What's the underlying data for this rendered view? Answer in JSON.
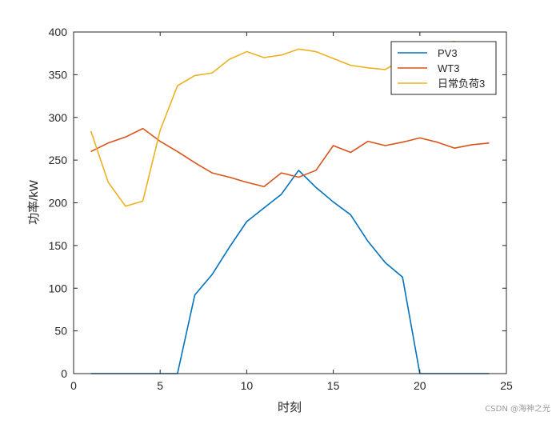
{
  "chart_data": {
    "type": "line",
    "title": "",
    "xlabel": "时刻",
    "ylabel": "功率/kW",
    "xlim": [
      0,
      25
    ],
    "ylim": [
      0,
      400
    ],
    "xticks": [
      0,
      5,
      10,
      15,
      20,
      25
    ],
    "yticks": [
      0,
      50,
      100,
      150,
      200,
      250,
      300,
      350,
      400
    ],
    "grid": false,
    "legend_position": "top-right",
    "series": [
      {
        "name": "PV3",
        "color": "#0072BD",
        "x": [
          1,
          2,
          3,
          4,
          5,
          6,
          7,
          8,
          9,
          10,
          11,
          12,
          13,
          14,
          15,
          16,
          17,
          18,
          19,
          20,
          21,
          22,
          23,
          24
        ],
        "values": [
          0,
          0,
          0,
          0,
          0,
          0,
          92,
          116,
          148,
          178,
          194,
          210,
          238,
          218,
          201,
          186,
          155,
          130,
          113,
          0,
          0,
          0,
          0,
          0
        ]
      },
      {
        "name": "WT3",
        "color": "#D95319",
        "x": [
          1,
          2,
          3,
          4,
          5,
          6,
          7,
          8,
          9,
          10,
          11,
          12,
          13,
          14,
          15,
          16,
          17,
          18,
          19,
          20,
          21,
          22,
          23,
          24
        ],
        "values": [
          260,
          270,
          277,
          287,
          272,
          260,
          247,
          235,
          230,
          224,
          219,
          235,
          230,
          238,
          267,
          259,
          272,
          267,
          271,
          276,
          271,
          264,
          268,
          270
        ]
      },
      {
        "name": "日常负荷3",
        "color": "#EDB120",
        "x": [
          1,
          2,
          3,
          4,
          5,
          6,
          7,
          8,
          9,
          10,
          11,
          12,
          13,
          14,
          15,
          16,
          17,
          18,
          19,
          20,
          21,
          22,
          23,
          24
        ],
        "values": [
          284,
          224,
          196,
          202,
          285,
          337,
          349,
          352,
          368,
          377,
          370,
          373,
          380,
          377,
          369,
          361,
          358,
          356,
          368,
          381,
          386,
          389,
          375,
          372
        ]
      }
    ]
  },
  "watermark": "CSDN @海神之光"
}
